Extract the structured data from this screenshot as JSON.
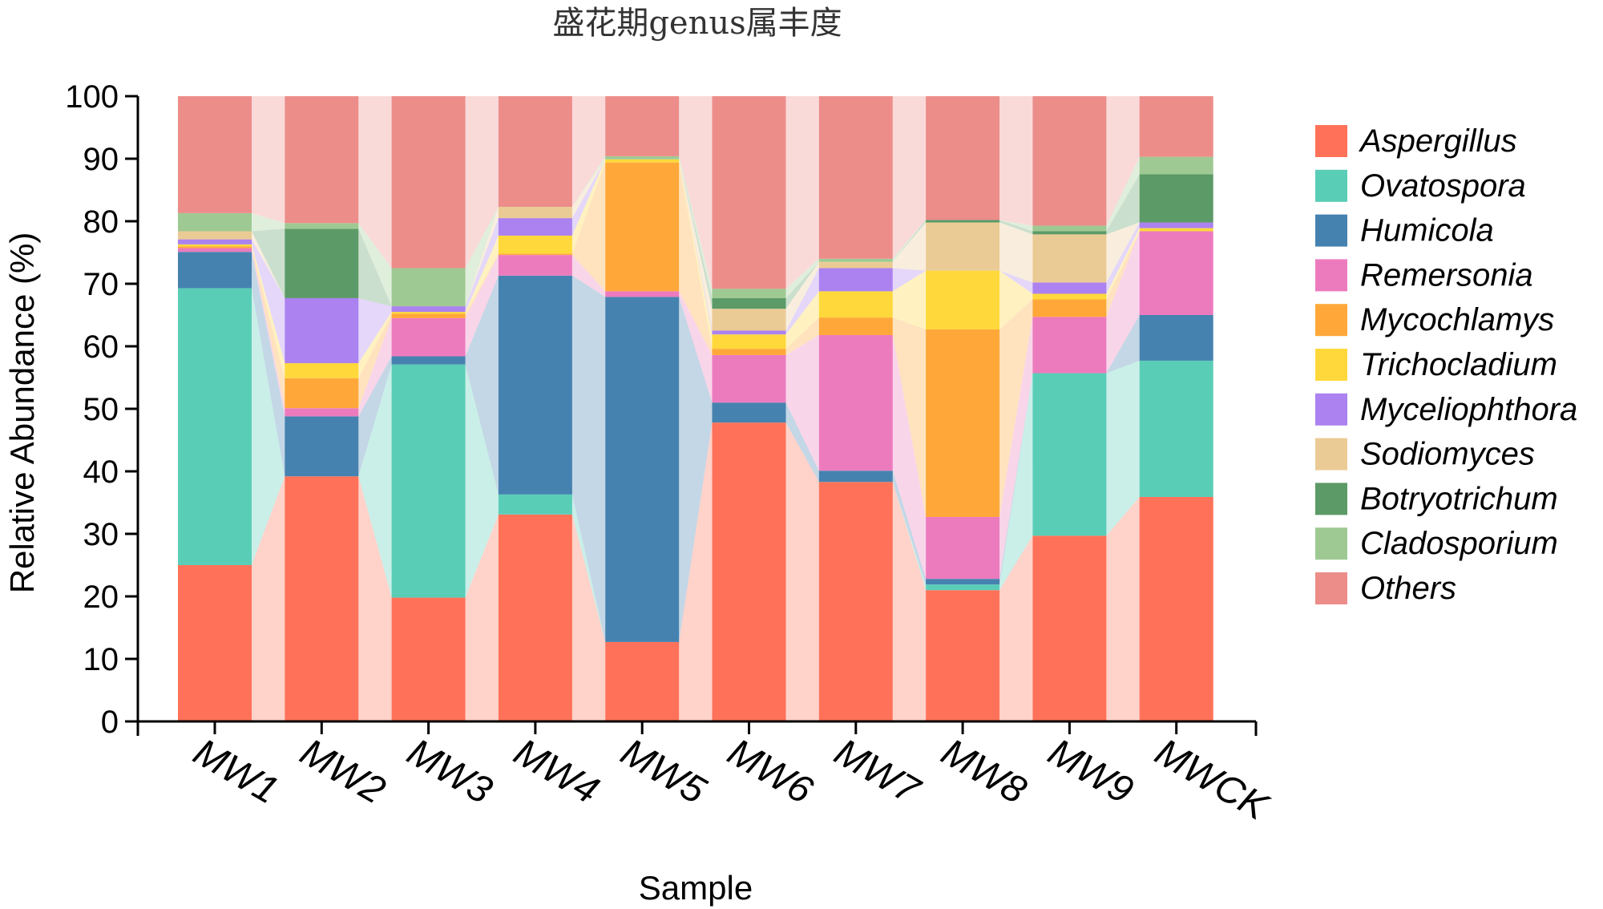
{
  "chart_data": {
    "type": "bar",
    "stacked": true,
    "title": "盛花期genus属丰度",
    "xlabel": "Sample",
    "ylabel": "Relative Abundance (%)",
    "ylim": [
      0,
      100
    ],
    "yticks": [
      "0",
      "10",
      "20",
      "30",
      "40",
      "50",
      "60",
      "70",
      "80",
      "90",
      "100"
    ],
    "legend_position": "right",
    "categories": [
      "MW1",
      "MW2",
      "MW3",
      "MW4",
      "MW5",
      "MW6",
      "MW7",
      "MW8",
      "MW9",
      "MWCK"
    ],
    "series": [
      {
        "name": "Aspergillus",
        "color": "#FF7259",
        "values": [
          25.0,
          39.2,
          19.8,
          33.1,
          12.7,
          47.8,
          38.3,
          21.0,
          29.7,
          35.9
        ]
      },
      {
        "name": "Ovatospora",
        "color": "#5ACDB7",
        "values": [
          44.3,
          0.0,
          37.3,
          3.2,
          0.0,
          0.0,
          0.0,
          0.9,
          26.0,
          21.8
        ]
      },
      {
        "name": "Humicola",
        "color": "#4682B0",
        "values": [
          5.8,
          9.6,
          1.3,
          35.0,
          55.2,
          3.2,
          1.8,
          0.9,
          0.0,
          7.3
        ]
      },
      {
        "name": "Remersonia",
        "color": "#EC7BBE",
        "values": [
          0.6,
          1.3,
          6.1,
          3.3,
          0.9,
          7.6,
          21.7,
          9.9,
          9.0,
          13.4
        ]
      },
      {
        "name": "Mycochlamys",
        "color": "#FFA839",
        "values": [
          0.3,
          4.8,
          0.7,
          0.2,
          20.6,
          1.0,
          2.8,
          30.0,
          2.8,
          0.0
        ]
      },
      {
        "name": "Trichocladium",
        "color": "#FFD83B",
        "values": [
          0.3,
          2.4,
          0.3,
          2.9,
          0.5,
          2.3,
          4.2,
          9.4,
          0.9,
          0.5
        ]
      },
      {
        "name": "Myceliophthora",
        "color": "#AB82EF",
        "values": [
          0.8,
          10.4,
          0.9,
          2.8,
          0.0,
          0.6,
          3.7,
          0.0,
          1.8,
          0.9
        ]
      },
      {
        "name": "Sodiomyces",
        "color": "#EBCB95",
        "values": [
          1.3,
          0.0,
          0.0,
          1.8,
          0.0,
          3.5,
          1.0,
          7.7,
          7.7,
          0.0
        ]
      },
      {
        "name": "Botryotrichum",
        "color": "#5C9A67",
        "values": [
          0.0,
          11.1,
          0.0,
          0.0,
          0.0,
          1.7,
          0.0,
          0.4,
          0.5,
          7.7
        ]
      },
      {
        "name": "Cladosporium",
        "color": "#9FC993",
        "values": [
          2.9,
          0.9,
          6.1,
          0.0,
          0.5,
          1.5,
          0.5,
          0.0,
          0.9,
          2.8
        ]
      },
      {
        "name": "Others",
        "color": "#EC8D8A",
        "values": [
          18.7,
          20.3,
          27.5,
          17.7,
          9.6,
          30.8,
          26.0,
          19.8,
          20.7,
          9.7
        ]
      }
    ]
  }
}
